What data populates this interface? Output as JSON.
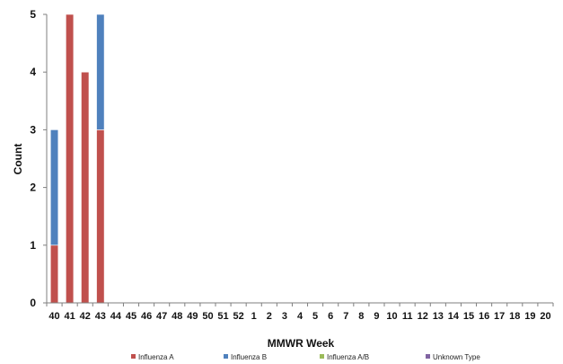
{
  "chart_data": {
    "type": "bar",
    "stacked": true,
    "xlabel": "MMWR Week",
    "ylabel": "Count",
    "ylim": [
      0,
      5
    ],
    "yticks": [
      0,
      1,
      2,
      3,
      4,
      5
    ],
    "grid": false,
    "legend_position": "bottom",
    "categories": [
      "40",
      "41",
      "42",
      "43",
      "44",
      "45",
      "46",
      "47",
      "48",
      "49",
      "50",
      "51",
      "52",
      "1",
      "2",
      "3",
      "4",
      "5",
      "6",
      "7",
      "8",
      "9",
      "10",
      "11",
      "12",
      "13",
      "14",
      "15",
      "16",
      "17",
      "18",
      "19",
      "20"
    ],
    "series": [
      {
        "name": "Influenza A",
        "color": "#c0504d",
        "values": [
          1,
          5,
          4,
          3,
          0,
          0,
          0,
          0,
          0,
          0,
          0,
          0,
          0,
          0,
          0,
          0,
          0,
          0,
          0,
          0,
          0,
          0,
          0,
          0,
          0,
          0,
          0,
          0,
          0,
          0,
          0,
          0,
          0
        ]
      },
      {
        "name": "Influenza B",
        "color": "#4f81bd",
        "values": [
          2,
          0,
          0,
          2,
          0,
          0,
          0,
          0,
          0,
          0,
          0,
          0,
          0,
          0,
          0,
          0,
          0,
          0,
          0,
          0,
          0,
          0,
          0,
          0,
          0,
          0,
          0,
          0,
          0,
          0,
          0,
          0,
          0
        ]
      },
      {
        "name": "Influenza A/B",
        "color": "#9bbb59",
        "values": [
          0,
          0,
          0,
          0,
          0,
          0,
          0,
          0,
          0,
          0,
          0,
          0,
          0,
          0,
          0,
          0,
          0,
          0,
          0,
          0,
          0,
          0,
          0,
          0,
          0,
          0,
          0,
          0,
          0,
          0,
          0,
          0,
          0
        ]
      },
      {
        "name": "Unknown Type",
        "color": "#8064a2",
        "values": [
          0,
          0,
          0,
          0,
          0,
          0,
          0,
          0,
          0,
          0,
          0,
          0,
          0,
          0,
          0,
          0,
          0,
          0,
          0,
          0,
          0,
          0,
          0,
          0,
          0,
          0,
          0,
          0,
          0,
          0,
          0,
          0,
          0
        ]
      }
    ]
  }
}
